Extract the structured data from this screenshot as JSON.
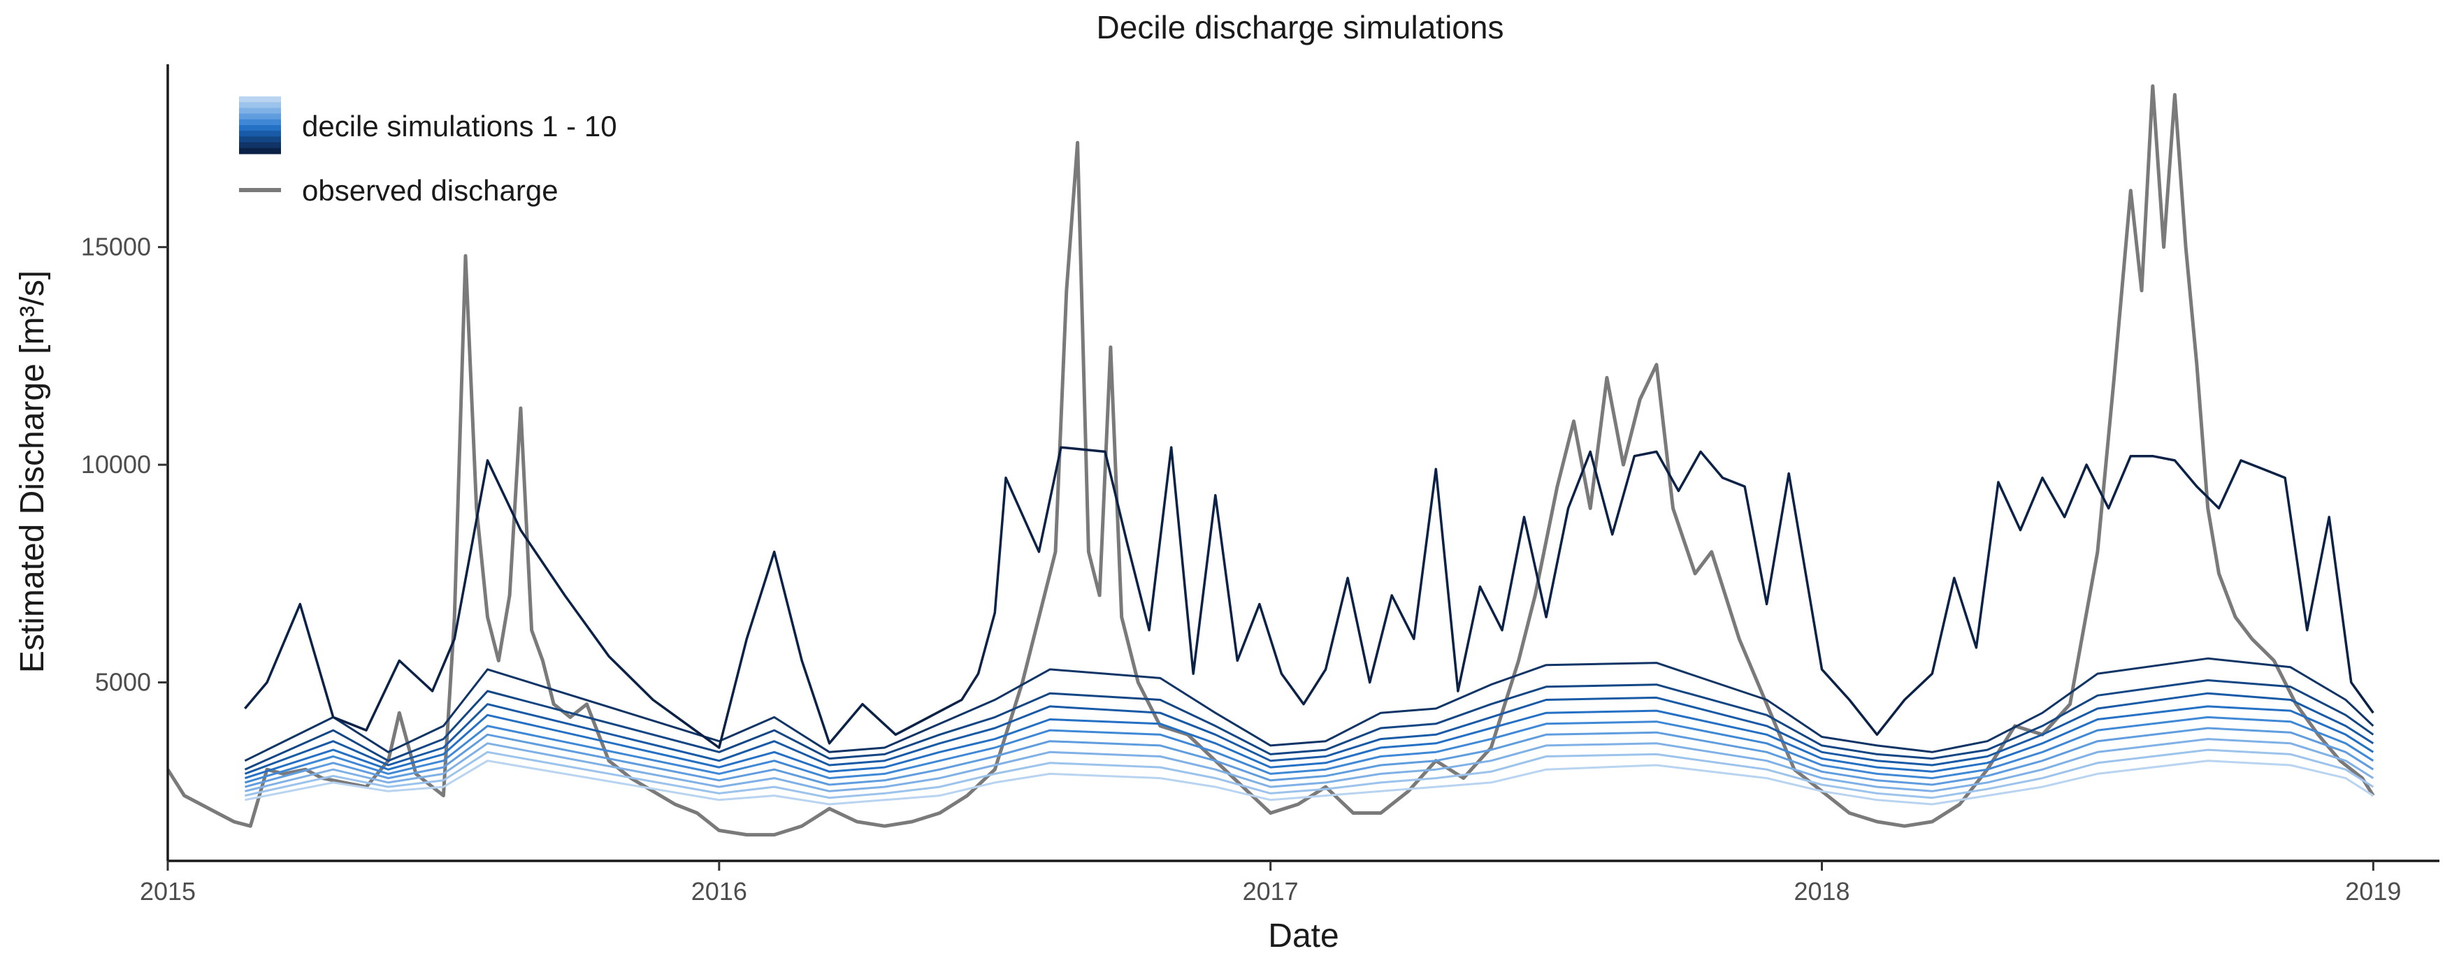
{
  "chart_data": {
    "type": "line",
    "title": "Decile discharge simulations",
    "xlabel": "Date",
    "ylabel": "Estimated Discharge [m³/s]",
    "xlim": [
      2015.0,
      2019.12
    ],
    "ylim": [
      900,
      19200
    ],
    "x_ticks": [
      2015,
      2016,
      2017,
      2018,
      2019
    ],
    "x_tick_labels": [
      "2015",
      "2016",
      "2017",
      "2018",
      "2019"
    ],
    "y_ticks": [
      5000,
      10000,
      15000
    ],
    "y_tick_labels": [
      "5000",
      "10000",
      "15000"
    ],
    "grid": false,
    "legend": {
      "position": "top-left",
      "entries": [
        {
          "label": "decile simulations 1 - 10",
          "style": "blue-gradient"
        },
        {
          "label": "observed discharge",
          "style": "gray-line"
        }
      ]
    },
    "colors": {
      "observed": "#7a7a7a",
      "deciles": [
        "#b8d4f0",
        "#9cc3ec",
        "#7fb0e6",
        "#5f9ddf",
        "#3f88d6",
        "#2470c4",
        "#185aa6",
        "#134684",
        "#0f3465",
        "#0b2146"
      ]
    },
    "observed": {
      "name": "observed discharge",
      "x": [
        2015.0,
        2015.03,
        2015.06,
        2015.09,
        2015.12,
        2015.15,
        2015.18,
        2015.21,
        2015.25,
        2015.28,
        2015.32,
        2015.36,
        2015.4,
        2015.42,
        2015.45,
        2015.48,
        2015.5,
        2015.52,
        2015.54,
        2015.56,
        2015.58,
        2015.6,
        2015.62,
        2015.64,
        2015.66,
        2015.68,
        2015.7,
        2015.73,
        2015.76,
        2015.8,
        2015.84,
        2015.88,
        2015.92,
        2015.96,
        2016.0,
        2016.05,
        2016.1,
        2016.15,
        2016.2,
        2016.25,
        2016.3,
        2016.35,
        2016.4,
        2016.45,
        2016.5,
        2016.55,
        2016.58,
        2016.61,
        2016.63,
        2016.65,
        2016.67,
        2016.69,
        2016.71,
        2016.73,
        2016.76,
        2016.8,
        2016.85,
        2016.9,
        2016.95,
        2017.0,
        2017.05,
        2017.1,
        2017.15,
        2017.2,
        2017.25,
        2017.3,
        2017.35,
        2017.4,
        2017.45,
        2017.48,
        2017.52,
        2017.55,
        2017.58,
        2017.61,
        2017.64,
        2017.67,
        2017.7,
        2017.73,
        2017.77,
        2017.8,
        2017.85,
        2017.9,
        2017.95,
        2018.0,
        2018.05,
        2018.1,
        2018.15,
        2018.2,
        2018.25,
        2018.3,
        2018.35,
        2018.4,
        2018.45,
        2018.5,
        2018.53,
        2018.56,
        2018.58,
        2018.6,
        2018.62,
        2018.64,
        2018.66,
        2018.68,
        2018.7,
        2018.72,
        2018.75,
        2018.78,
        2018.82,
        2018.86,
        2018.9,
        2018.94,
        2018.98,
        2019.0
      ],
      "y": [
        3000,
        2400,
        2200,
        2000,
        1800,
        1700,
        3000,
        2900,
        3000,
        2800,
        2700,
        2600,
        3200,
        4300,
        2900,
        2600,
        2400,
        6500,
        14800,
        9000,
        6500,
        5500,
        7000,
        11300,
        6200,
        5500,
        4500,
        4200,
        4500,
        3200,
        2800,
        2500,
        2200,
        2000,
        1600,
        1500,
        1500,
        1700,
        2100,
        1800,
        1700,
        1800,
        2000,
        2400,
        3000,
        5000,
        6500,
        8000,
        14000,
        17400,
        8000,
        7000,
        12700,
        6500,
        5000,
        4000,
        3800,
        3200,
        2600,
        2000,
        2200,
        2600,
        2000,
        2000,
        2500,
        3200,
        2800,
        3500,
        5500,
        7000,
        9500,
        11000,
        9000,
        12000,
        10000,
        11500,
        12300,
        9000,
        7500,
        8000,
        6000,
        4500,
        3000,
        2500,
        2000,
        1800,
        1700,
        1800,
        2200,
        3000,
        4000,
        3800,
        4500,
        8000,
        12000,
        16300,
        14000,
        18700,
        15000,
        18500,
        15000,
        12300,
        9000,
        7500,
        6500,
        6000,
        5500,
        4500,
        3800,
        3200,
        2800,
        2400
      ]
    },
    "deciles": [
      {
        "name": "decile 1",
        "x": [
          2015.14,
          2015.3,
          2015.4,
          2015.5,
          2015.58,
          2016.0,
          2016.1,
          2016.2,
          2016.3,
          2016.4,
          2016.5,
          2016.6,
          2016.8,
          2016.9,
          2017.0,
          2017.1,
          2017.2,
          2017.3,
          2017.4,
          2017.5,
          2017.7,
          2017.9,
          2018.0,
          2018.1,
          2018.2,
          2018.3,
          2018.4,
          2018.5,
          2018.7,
          2018.85,
          2018.95,
          2019.0
        ],
        "y": [
          2300,
          2700,
          2500,
          2600,
          3200,
          2300,
          2400,
          2200,
          2300,
          2400,
          2700,
          2900,
          2800,
          2600,
          2300,
          2400,
          2500,
          2600,
          2700,
          3000,
          3100,
          2800,
          2500,
          2300,
          2200,
          2400,
          2600,
          2900,
          3200,
          3100,
          2800,
          2400
        ]
      },
      {
        "name": "decile 2",
        "x": [
          2015.14,
          2015.3,
          2015.4,
          2015.5,
          2015.58,
          2016.0,
          2016.1,
          2016.2,
          2016.3,
          2016.4,
          2016.5,
          2016.6,
          2016.8,
          2016.9,
          2017.0,
          2017.1,
          2017.2,
          2017.3,
          2017.4,
          2017.5,
          2017.7,
          2017.9,
          2018.0,
          2018.1,
          2018.2,
          2018.3,
          2018.4,
          2018.5,
          2018.7,
          2018.85,
          2018.95,
          2019.0
        ],
        "y": [
          2400,
          2850,
          2600,
          2750,
          3400,
          2450,
          2600,
          2350,
          2450,
          2600,
          2900,
          3150,
          3050,
          2800,
          2450,
          2550,
          2700,
          2800,
          2950,
          3300,
          3350,
          3000,
          2650,
          2450,
          2350,
          2550,
          2800,
          3150,
          3450,
          3350,
          3000,
          2600
        ]
      },
      {
        "name": "decile 3",
        "x": [
          2015.14,
          2015.3,
          2015.4,
          2015.5,
          2015.58,
          2016.0,
          2016.1,
          2016.2,
          2016.3,
          2016.4,
          2016.5,
          2016.6,
          2016.8,
          2016.9,
          2017.0,
          2017.1,
          2017.2,
          2017.3,
          2017.4,
          2017.5,
          2017.7,
          2017.9,
          2018.0,
          2018.1,
          2018.2,
          2018.3,
          2018.4,
          2018.5,
          2018.7,
          2018.85,
          2018.95,
          2019.0
        ],
        "y": [
          2500,
          3000,
          2700,
          2900,
          3600,
          2600,
          2800,
          2500,
          2600,
          2800,
          3100,
          3400,
          3300,
          3000,
          2600,
          2700,
          2900,
          3000,
          3200,
          3550,
          3600,
          3200,
          2800,
          2600,
          2500,
          2700,
          3000,
          3400,
          3700,
          3600,
          3200,
          2800
        ]
      },
      {
        "name": "decile 4",
        "x": [
          2015.14,
          2015.3,
          2015.4,
          2015.5,
          2015.58,
          2016.0,
          2016.1,
          2016.2,
          2016.3,
          2016.4,
          2016.5,
          2016.6,
          2016.8,
          2016.9,
          2017.0,
          2017.1,
          2017.2,
          2017.3,
          2017.4,
          2017.5,
          2017.7,
          2017.9,
          2018.0,
          2018.1,
          2018.2,
          2018.3,
          2018.4,
          2018.5,
          2018.7,
          2018.85,
          2018.95,
          2019.0
        ],
        "y": [
          2600,
          3150,
          2800,
          3050,
          3800,
          2750,
          3000,
          2650,
          2750,
          3000,
          3300,
          3650,
          3550,
          3200,
          2750,
          2850,
          3100,
          3200,
          3450,
          3800,
          3850,
          3400,
          2950,
          2750,
          2650,
          2850,
          3200,
          3650,
          3950,
          3850,
          3400,
          3000
        ]
      },
      {
        "name": "decile 5",
        "x": [
          2015.14,
          2015.3,
          2015.4,
          2015.5,
          2015.58,
          2016.0,
          2016.1,
          2016.2,
          2016.3,
          2016.4,
          2016.5,
          2016.6,
          2016.8,
          2016.9,
          2017.0,
          2017.1,
          2017.2,
          2017.3,
          2017.4,
          2017.5,
          2017.7,
          2017.9,
          2018.0,
          2018.1,
          2018.2,
          2018.3,
          2018.4,
          2018.5,
          2018.7,
          2018.85,
          2018.95,
          2019.0
        ],
        "y": [
          2700,
          3300,
          2900,
          3200,
          4000,
          2900,
          3200,
          2800,
          2900,
          3200,
          3500,
          3900,
          3800,
          3400,
          2900,
          3000,
          3300,
          3400,
          3700,
          4050,
          4100,
          3600,
          3100,
          2900,
          2800,
          3000,
          3400,
          3900,
          4200,
          4100,
          3600,
          3200
        ]
      },
      {
        "name": "decile 6",
        "x": [
          2015.14,
          2015.3,
          2015.4,
          2015.5,
          2015.58,
          2016.0,
          2016.1,
          2016.2,
          2016.3,
          2016.4,
          2016.5,
          2016.6,
          2016.8,
          2016.9,
          2017.0,
          2017.1,
          2017.2,
          2017.3,
          2017.4,
          2017.5,
          2017.7,
          2017.9,
          2018.0,
          2018.1,
          2018.2,
          2018.3,
          2018.4,
          2018.5,
          2018.7,
          2018.85,
          2018.95,
          2019.0
        ],
        "y": [
          2800,
          3450,
          3000,
          3350,
          4250,
          3050,
          3400,
          2950,
          3050,
          3400,
          3700,
          4150,
          4050,
          3600,
          3050,
          3150,
          3500,
          3600,
          3950,
          4300,
          4350,
          3800,
          3250,
          3050,
          2950,
          3150,
          3600,
          4150,
          4450,
          4350,
          3800,
          3400
        ]
      },
      {
        "name": "decile 7",
        "x": [
          2015.14,
          2015.3,
          2015.4,
          2015.5,
          2015.58,
          2016.0,
          2016.1,
          2016.2,
          2016.3,
          2016.4,
          2016.5,
          2016.6,
          2016.8,
          2016.9,
          2017.0,
          2017.1,
          2017.2,
          2017.3,
          2017.4,
          2017.5,
          2017.7,
          2017.9,
          2018.0,
          2018.1,
          2018.2,
          2018.3,
          2018.4,
          2018.5,
          2018.7,
          2018.85,
          2018.95,
          2019.0
        ],
        "y": [
          2900,
          3650,
          3100,
          3500,
          4500,
          3200,
          3650,
          3100,
          3200,
          3600,
          3950,
          4450,
          4300,
          3800,
          3200,
          3300,
          3700,
          3800,
          4200,
          4600,
          4650,
          4000,
          3400,
          3200,
          3100,
          3300,
          3800,
          4400,
          4750,
          4600,
          4000,
          3600
        ]
      },
      {
        "name": "decile 8",
        "x": [
          2015.14,
          2015.3,
          2015.4,
          2015.5,
          2015.58,
          2016.0,
          2016.1,
          2016.2,
          2016.3,
          2016.4,
          2016.5,
          2016.6,
          2016.8,
          2016.9,
          2017.0,
          2017.1,
          2017.2,
          2017.3,
          2017.4,
          2017.5,
          2017.7,
          2017.9,
          2018.0,
          2018.1,
          2018.2,
          2018.3,
          2018.4,
          2018.5,
          2018.7,
          2018.85,
          2018.95,
          2019.0
        ],
        "y": [
          3000,
          3900,
          3200,
          3700,
          4800,
          3400,
          3900,
          3250,
          3350,
          3800,
          4200,
          4750,
          4600,
          4000,
          3350,
          3450,
          3950,
          4050,
          4500,
          4900,
          4950,
          4250,
          3550,
          3350,
          3250,
          3450,
          4000,
          4700,
          5050,
          4900,
          4250,
          3800
        ]
      },
      {
        "name": "decile 9",
        "x": [
          2015.14,
          2015.3,
          2015.4,
          2015.5,
          2015.58,
          2016.0,
          2016.1,
          2016.2,
          2016.3,
          2016.4,
          2016.5,
          2016.6,
          2016.8,
          2016.9,
          2017.0,
          2017.1,
          2017.2,
          2017.3,
          2017.4,
          2017.5,
          2017.7,
          2017.9,
          2018.0,
          2018.1,
          2018.2,
          2018.3,
          2018.4,
          2018.5,
          2018.7,
          2018.85,
          2018.95,
          2019.0
        ],
        "y": [
          3200,
          4200,
          3400,
          4000,
          5300,
          3650,
          4200,
          3400,
          3500,
          4050,
          4600,
          5300,
          5100,
          4300,
          3550,
          3650,
          4300,
          4400,
          4950,
          5400,
          5450,
          4600,
          3750,
          3550,
          3400,
          3650,
          4300,
          5200,
          5550,
          5350,
          4600,
          4000
        ]
      },
      {
        "name": "decile 10",
        "x": [
          2015.14,
          2015.18,
          2015.24,
          2015.3,
          2015.36,
          2015.42,
          2015.48,
          2015.52,
          2015.58,
          2015.64,
          2015.72,
          2015.8,
          2015.88,
          2016.0,
          2016.05,
          2016.1,
          2016.15,
          2016.2,
          2016.26,
          2016.32,
          2016.38,
          2016.44,
          2016.47,
          2016.5,
          2016.52,
          2016.58,
          2016.62,
          2016.7,
          2016.74,
          2016.78,
          2016.82,
          2016.86,
          2016.9,
          2016.94,
          2016.98,
          2017.02,
          2017.06,
          2017.1,
          2017.14,
          2017.18,
          2017.22,
          2017.26,
          2017.3,
          2017.34,
          2017.38,
          2017.42,
          2017.46,
          2017.5,
          2017.54,
          2017.58,
          2017.62,
          2017.66,
          2017.7,
          2017.74,
          2017.78,
          2017.82,
          2017.86,
          2017.9,
          2017.94,
          2018.0,
          2018.05,
          2018.1,
          2018.15,
          2018.2,
          2018.24,
          2018.28,
          2018.32,
          2018.36,
          2018.4,
          2018.44,
          2018.48,
          2018.52,
          2018.56,
          2018.6,
          2018.64,
          2018.68,
          2018.72,
          2018.76,
          2018.8,
          2018.84,
          2018.88,
          2018.92,
          2018.96,
          2019.0
        ],
        "y": [
          4400,
          5000,
          6800,
          4200,
          3900,
          5500,
          4800,
          6000,
          10100,
          8500,
          7000,
          5600,
          4600,
          3500,
          6000,
          8000,
          5500,
          3600,
          4500,
          3800,
          4200,
          4600,
          5200,
          6600,
          9700,
          8000,
          10400,
          10300,
          8200,
          6200,
          10400,
          5200,
          9300,
          5500,
          6800,
          5200,
          4500,
          5300,
          7400,
          5000,
          7000,
          6000,
          9900,
          4800,
          7200,
          6200,
          8800,
          6500,
          9000,
          10300,
          8400,
          10200,
          10300,
          9400,
          10300,
          9700,
          9500,
          6800,
          9800,
          5300,
          4600,
          3800,
          4600,
          5200,
          7400,
          5800,
          9600,
          8500,
          9700,
          8800,
          10000,
          9000,
          10200,
          10200,
          10100,
          9500,
          9000,
          10100,
          9900,
          9700,
          6200,
          8800,
          5000,
          4300
        ]
      }
    ]
  }
}
